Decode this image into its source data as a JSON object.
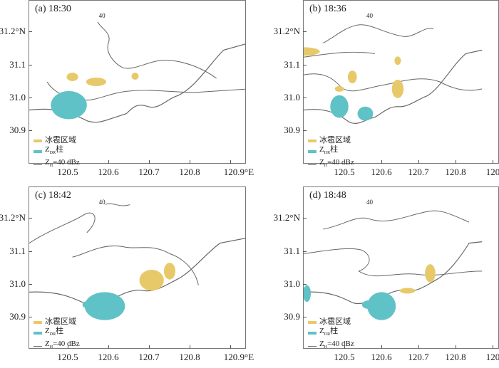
{
  "colors": {
    "hail": "#e8c96a",
    "zdr": "#5fc2c6",
    "contour": "#666666",
    "coast": "#666666"
  },
  "legend": {
    "hail": "冰雹区域",
    "zdr_main": "Z",
    "zdr_sub": "DR",
    "zdr_suffix": "柱",
    "zh_main": "Z",
    "zh_sub": "H",
    "zh_suffix": "=40  dBz"
  },
  "x_ticks": [
    "120.5",
    "120.6",
    "120.7",
    "120.8",
    "120.9°E"
  ],
  "y_ticks": [
    "31.2°N",
    "31.1",
    "31.0",
    "30.9"
  ],
  "contour_label": "40",
  "panels": [
    {
      "label": "(a)  18:30"
    },
    {
      "label": "(b)  18:36"
    },
    {
      "label": "(c)  18:42"
    },
    {
      "label": "(d)  18:48"
    }
  ]
}
